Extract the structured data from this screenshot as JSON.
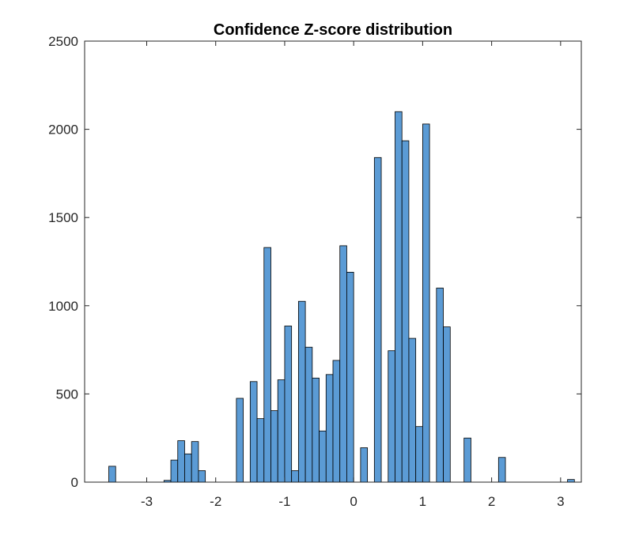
{
  "chart_data": {
    "type": "bar",
    "title": "Confidence Z-score distribution",
    "xlabel": "",
    "ylabel": "",
    "xlim": [
      -3.9,
      3.3
    ],
    "ylim": [
      0,
      2500
    ],
    "x_ticks": [
      -3,
      -2,
      -1,
      0,
      1,
      2,
      3
    ],
    "x_tick_labels": [
      "-3",
      "-2",
      "-1",
      "0",
      "1",
      "2",
      "3"
    ],
    "y_ticks": [
      0,
      500,
      1000,
      1500,
      2000,
      2500
    ],
    "y_tick_labels": [
      "0",
      "500",
      "1000",
      "1500",
      "2000",
      "2500"
    ],
    "bin_width": 0.1,
    "grid": false,
    "bar_color": "#5b9bd5",
    "edge_color": "#000000",
    "bins": [
      {
        "x": -3.5,
        "count": 90
      },
      {
        "x": -2.7,
        "count": 10
      },
      {
        "x": -2.6,
        "count": 125
      },
      {
        "x": -2.5,
        "count": 235
      },
      {
        "x": -2.4,
        "count": 160
      },
      {
        "x": -2.3,
        "count": 230
      },
      {
        "x": -2.2,
        "count": 65
      },
      {
        "x": -1.65,
        "count": 475
      },
      {
        "x": -1.45,
        "count": 570
      },
      {
        "x": -1.35,
        "count": 360
      },
      {
        "x": -1.25,
        "count": 1330
      },
      {
        "x": -1.15,
        "count": 405
      },
      {
        "x": -1.05,
        "count": 580
      },
      {
        "x": -0.95,
        "count": 885
      },
      {
        "x": -0.85,
        "count": 65
      },
      {
        "x": -0.75,
        "count": 1025
      },
      {
        "x": -0.65,
        "count": 765
      },
      {
        "x": -0.55,
        "count": 590
      },
      {
        "x": -0.45,
        "count": 290
      },
      {
        "x": -0.35,
        "count": 610
      },
      {
        "x": -0.25,
        "count": 690
      },
      {
        "x": -0.15,
        "count": 1340
      },
      {
        "x": -0.05,
        "count": 1190
      },
      {
        "x": 0.15,
        "count": 195
      },
      {
        "x": 0.35,
        "count": 1840
      },
      {
        "x": 0.55,
        "count": 745
      },
      {
        "x": 0.65,
        "count": 2100
      },
      {
        "x": 0.75,
        "count": 1935
      },
      {
        "x": 0.85,
        "count": 815
      },
      {
        "x": 0.95,
        "count": 315
      },
      {
        "x": 1.05,
        "count": 2030
      },
      {
        "x": 1.25,
        "count": 1100
      },
      {
        "x": 1.35,
        "count": 880
      },
      {
        "x": 1.65,
        "count": 250
      },
      {
        "x": 2.15,
        "count": 140
      },
      {
        "x": 3.15,
        "count": 15
      }
    ]
  }
}
